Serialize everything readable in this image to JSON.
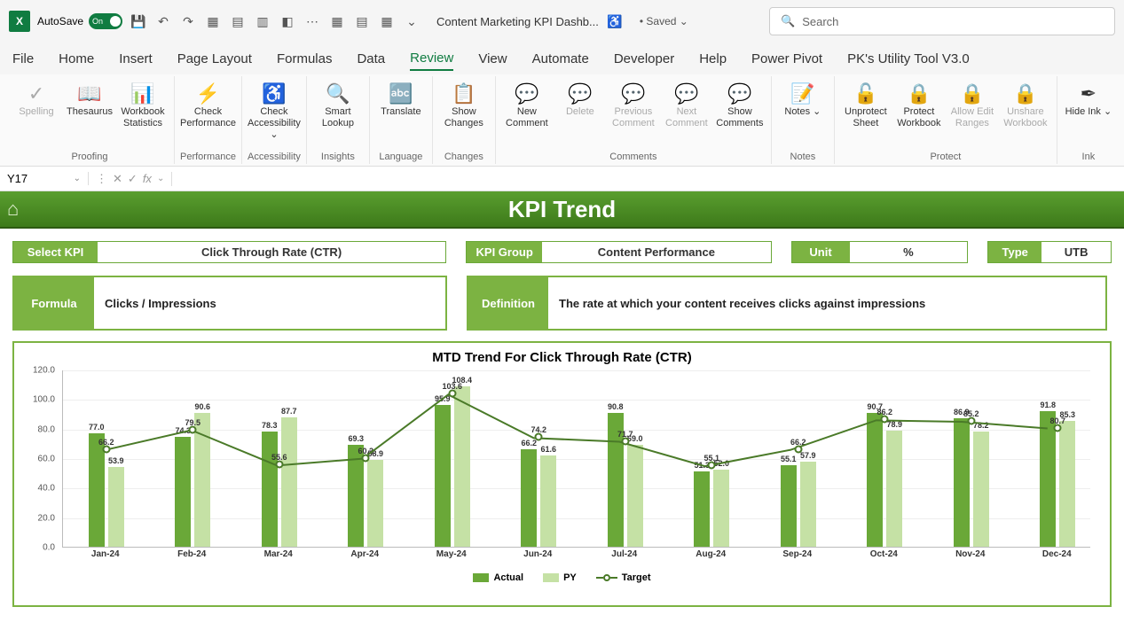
{
  "titlebar": {
    "autosave_label": "AutoSave",
    "autosave_state": "On",
    "doc_title": "Content Marketing KPI Dashb...",
    "saved_status": "• Saved ⌄",
    "search_placeholder": "Search"
  },
  "tabs": [
    "File",
    "Home",
    "Insert",
    "Page Layout",
    "Formulas",
    "Data",
    "Review",
    "View",
    "Automate",
    "Developer",
    "Help",
    "Power Pivot",
    "PK's Utility Tool V3.0"
  ],
  "active_tab": "Review",
  "ribbon": {
    "groups": [
      {
        "label": "Proofing",
        "buttons": [
          {
            "t": "Spelling",
            "i": "✓",
            "d": true
          },
          {
            "t": "Thesaurus",
            "i": "📖"
          },
          {
            "t": "Workbook Statistics",
            "i": "📊"
          }
        ]
      },
      {
        "label": "Performance",
        "buttons": [
          {
            "t": "Check Performance",
            "i": "⚡"
          }
        ]
      },
      {
        "label": "Accessibility",
        "buttons": [
          {
            "t": "Check Accessibility ⌄",
            "i": "♿"
          }
        ]
      },
      {
        "label": "Insights",
        "buttons": [
          {
            "t": "Smart Lookup",
            "i": "🔍"
          }
        ]
      },
      {
        "label": "Language",
        "buttons": [
          {
            "t": "Translate",
            "i": "🔤"
          }
        ]
      },
      {
        "label": "Changes",
        "buttons": [
          {
            "t": "Show Changes",
            "i": "📋"
          }
        ]
      },
      {
        "label": "Comments",
        "buttons": [
          {
            "t": "New Comment",
            "i": "💬"
          },
          {
            "t": "Delete",
            "i": "💬",
            "d": true
          },
          {
            "t": "Previous Comment",
            "i": "💬",
            "d": true
          },
          {
            "t": "Next Comment",
            "i": "💬",
            "d": true
          },
          {
            "t": "Show Comments",
            "i": "💬"
          }
        ]
      },
      {
        "label": "Notes",
        "buttons": [
          {
            "t": "Notes ⌄",
            "i": "📝"
          }
        ]
      },
      {
        "label": "Protect",
        "buttons": [
          {
            "t": "Unprotect Sheet",
            "i": "🔓"
          },
          {
            "t": "Protect Workbook",
            "i": "🔒"
          },
          {
            "t": "Allow Edit Ranges",
            "i": "🔒",
            "d": true
          },
          {
            "t": "Unshare Workbook",
            "i": "🔒",
            "d": true
          }
        ]
      },
      {
        "label": "Ink",
        "buttons": [
          {
            "t": "Hide Ink ⌄",
            "i": "✒"
          }
        ]
      }
    ]
  },
  "formula_bar": {
    "name_box": "Y17",
    "formula": ""
  },
  "dashboard": {
    "header_title": "KPI Trend",
    "select_kpi": {
      "label": "Select KPI",
      "value": "Click Through Rate (CTR)"
    },
    "kpi_group": {
      "label": "KPI Group",
      "value": "Content Performance"
    },
    "unit": {
      "label": "Unit",
      "value": "%"
    },
    "type": {
      "label": "Type",
      "value": "UTB"
    },
    "formula": {
      "label": "Formula",
      "value": "Clicks / Impressions"
    },
    "definition": {
      "label": "Definition",
      "value": "The rate at which your content receives clicks against impressions"
    }
  },
  "chart": {
    "title": "MTD Trend For Click Through Rate (CTR)",
    "type": "bar_with_line",
    "ylim": [
      0,
      120
    ],
    "ytick_step": 20,
    "yticks": [
      "0.0",
      "20.0",
      "40.0",
      "60.0",
      "80.0",
      "100.0",
      "120.0"
    ],
    "categories": [
      "Jan-24",
      "Feb-24",
      "Mar-24",
      "Apr-24",
      "May-24",
      "Jun-24",
      "Jul-24",
      "Aug-24",
      "Sep-24",
      "Oct-24",
      "Nov-24",
      "Dec-24"
    ],
    "actual": [
      77.0,
      74.3,
      78.3,
      69.3,
      95.9,
      66.2,
      90.8,
      51.3,
      55.1,
      90.7,
      86.9,
      91.8
    ],
    "py": [
      53.9,
      90.6,
      87.7,
      58.9,
      108.4,
      61.6,
      69.0,
      52.0,
      57.9,
      78.9,
      78.2,
      85.3
    ],
    "target": [
      66.2,
      79.5,
      55.6,
      60.2,
      103.6,
      74.2,
      71.7,
      55.1,
      66.2,
      86.2,
      85.2,
      80.7
    ],
    "actual_labels": [
      "77.0",
      "74.3",
      "78.3",
      "69.3",
      "95.9",
      "66.2",
      "90.8",
      "51.3",
      "55.1",
      "90.7",
      "86.9",
      "91.8"
    ],
    "py_labels": [
      "53.9",
      "90.6",
      "87.7",
      "58.9",
      "108.4",
      "61.6",
      "69.0",
      "52.0",
      "57.9",
      "78.9",
      "78.2",
      "85.3"
    ],
    "target_labels": [
      "66.2",
      "79.5",
      "55.6",
      "60.2",
      "103.6",
      "74.2",
      "71.7",
      "55.1",
      "66.2",
      "86.2",
      "85.2",
      "80.7"
    ],
    "colors": {
      "actual": "#6aa838",
      "py": "#c5e1a5",
      "target_line": "#4a7a28",
      "grid": "#eeeeee",
      "bg": "#ffffff"
    },
    "legend": [
      "Actual",
      "PY",
      "Target"
    ]
  }
}
